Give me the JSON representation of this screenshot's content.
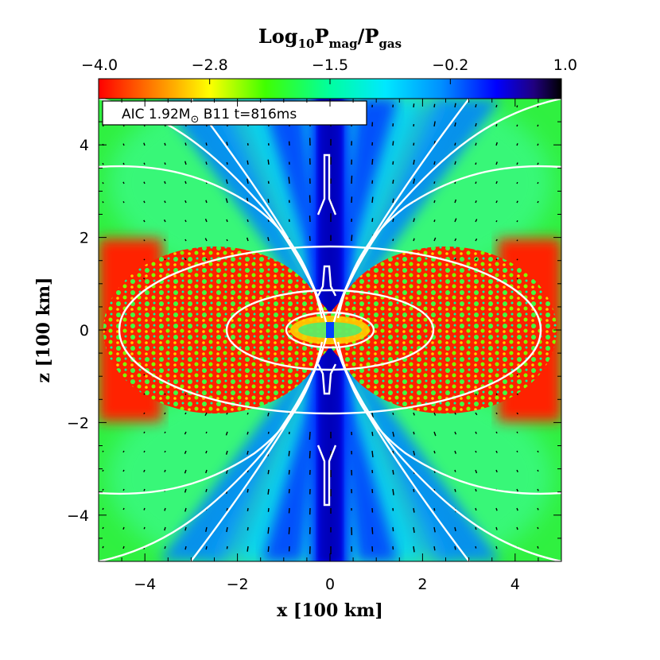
{
  "chart_data": {
    "type": "heatmap",
    "colorbar": {
      "title_main": "Log",
      "title_sub1": "10",
      "title_p1": "P",
      "title_sub2": "mag",
      "title_slash": "/P",
      "title_sub3": "gas",
      "ticks": [
        "−4.0",
        "−2.8",
        "−1.5",
        "−0.2",
        "1.0"
      ],
      "tick_values": [
        -4.0,
        -2.8,
        -1.5,
        -0.2,
        1.0
      ],
      "range": [
        -4.0,
        1.0
      ],
      "colors": [
        "#ff0000",
        "#ff8c00",
        "#ffff00",
        "#00ff00",
        "#00ffff",
        "#0000ff",
        "#000000"
      ]
    },
    "label": {
      "part1": "AIC 1.92M",
      "sun": "⊙",
      "part2": " B11 t=816ms"
    },
    "xlabel": "x [100 km]",
    "ylabel": "z [100 km]",
    "xlim": [
      -5,
      5
    ],
    "ylim": [
      -5,
      5
    ],
    "xticks": [
      {
        "value": -4,
        "label": "−4"
      },
      {
        "value": -2,
        "label": "−2"
      },
      {
        "value": 0,
        "label": "0"
      },
      {
        "value": 2,
        "label": "2"
      },
      {
        "value": 4,
        "label": "4"
      }
    ],
    "yticks": [
      {
        "value": 4,
        "label": "4"
      },
      {
        "value": 2,
        "label": "2"
      },
      {
        "value": 0,
        "label": "0"
      },
      {
        "value": -2,
        "label": "−2"
      },
      {
        "value": -4,
        "label": "−4"
      }
    ]
  }
}
